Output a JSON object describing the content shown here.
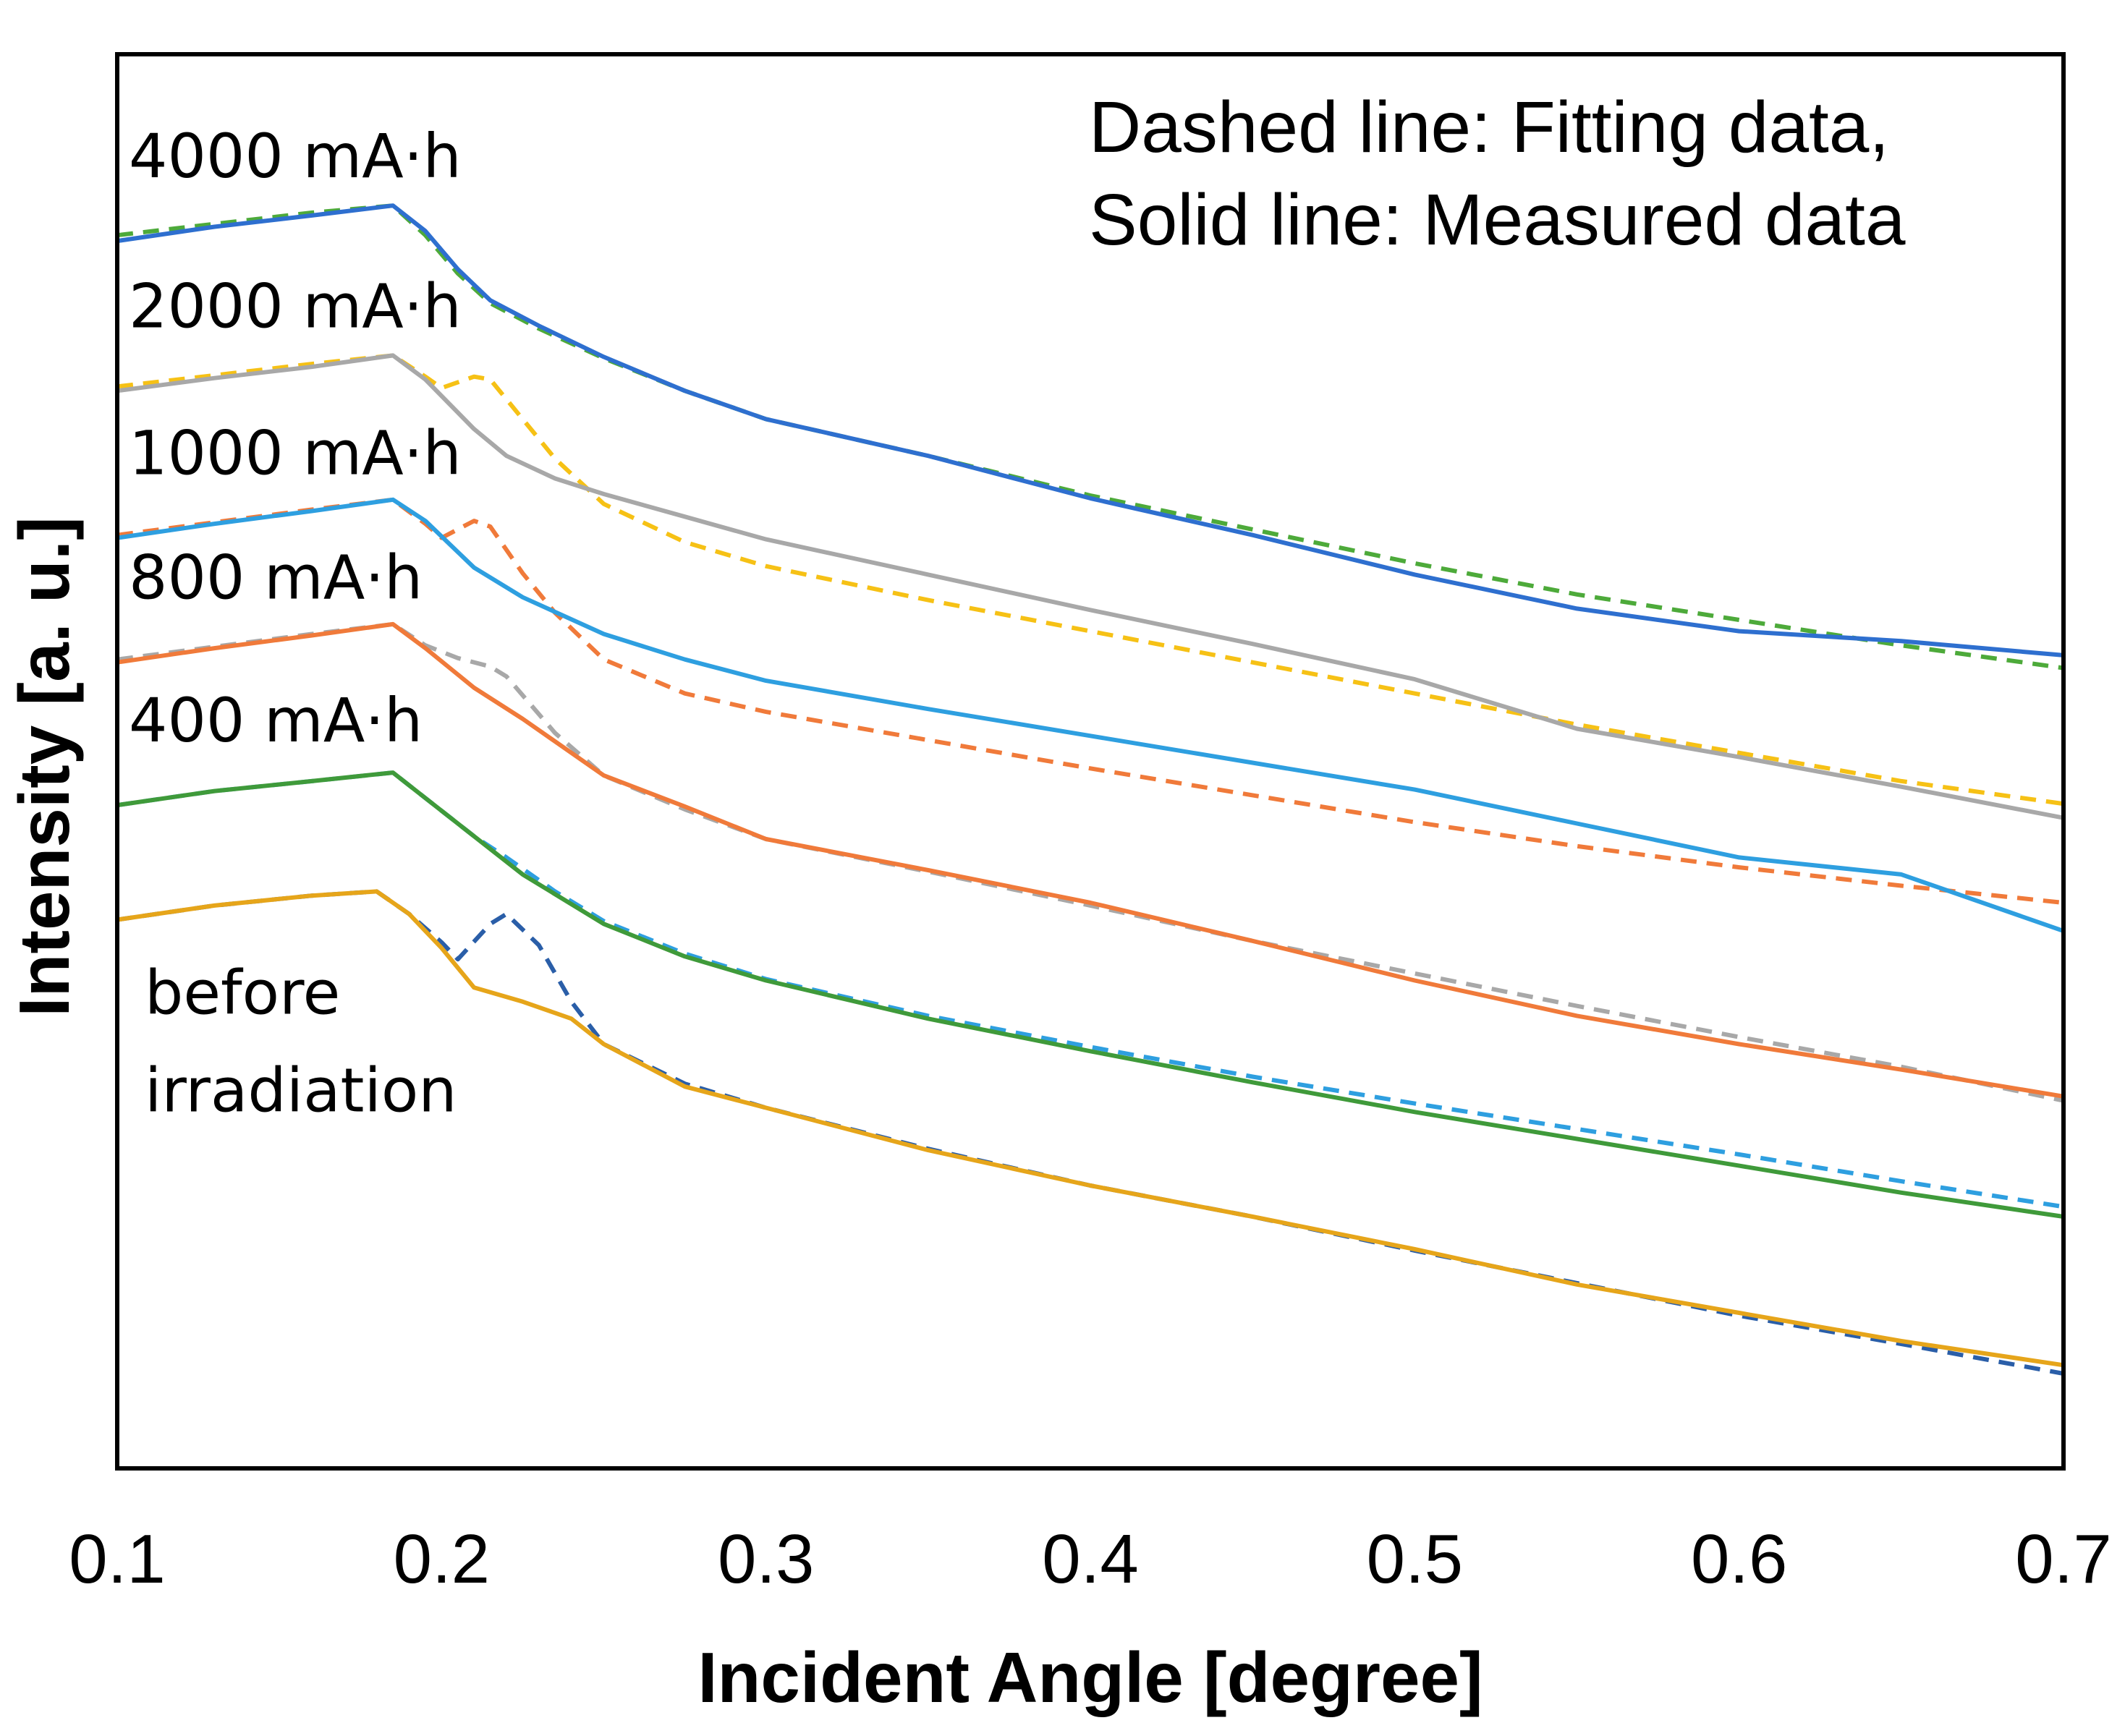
{
  "chart_data": {
    "type": "line",
    "title": "",
    "xlabel": "Incident Angle [degree]",
    "ylabel": "Intensity [a. u.]",
    "xlim": [
      0.1,
      0.7
    ],
    "ylim": [
      0,
      1
    ],
    "x_ticks": [
      "0.1",
      "0.2",
      "0.3",
      "0.4",
      "0.5",
      "0.6",
      "0.7"
    ],
    "grid": false,
    "annotation": {
      "line1": "Dashed line: Fitting data,",
      "line2": "Solid line: Measured data"
    },
    "series": [
      {
        "name": "4000 mA·h",
        "label_lines": [
          "4000 mA·h"
        ],
        "measured_color": "#2e6fcf",
        "fit_color": "#4daa3a",
        "measured": [
          [
            0.1,
            0.868
          ],
          [
            0.13,
            0.878
          ],
          [
            0.16,
            0.886
          ],
          [
            0.185,
            0.893
          ],
          [
            0.195,
            0.875
          ],
          [
            0.205,
            0.848
          ],
          [
            0.215,
            0.826
          ],
          [
            0.23,
            0.808
          ],
          [
            0.25,
            0.786
          ],
          [
            0.275,
            0.762
          ],
          [
            0.3,
            0.742
          ],
          [
            0.35,
            0.716
          ],
          [
            0.4,
            0.686
          ],
          [
            0.45,
            0.66
          ],
          [
            0.5,
            0.632
          ],
          [
            0.55,
            0.608
          ],
          [
            0.6,
            0.592
          ],
          [
            0.65,
            0.585
          ],
          [
            0.7,
            0.575
          ]
        ],
        "fit": [
          [
            0.1,
            0.872
          ],
          [
            0.13,
            0.88
          ],
          [
            0.16,
            0.888
          ],
          [
            0.185,
            0.893
          ],
          [
            0.195,
            0.872
          ],
          [
            0.205,
            0.845
          ],
          [
            0.215,
            0.824
          ],
          [
            0.23,
            0.806
          ],
          [
            0.25,
            0.785
          ],
          [
            0.275,
            0.762
          ],
          [
            0.3,
            0.742
          ],
          [
            0.35,
            0.716
          ],
          [
            0.4,
            0.688
          ],
          [
            0.45,
            0.664
          ],
          [
            0.5,
            0.64
          ],
          [
            0.55,
            0.618
          ],
          [
            0.6,
            0.6
          ],
          [
            0.65,
            0.582
          ],
          [
            0.7,
            0.566
          ]
        ]
      },
      {
        "name": "2000 mA·h",
        "label_lines": [
          "2000 mA·h"
        ],
        "measured_color": "#a8a8a8",
        "fit_color": "#f6c115",
        "measured": [
          [
            0.1,
            0.762
          ],
          [
            0.13,
            0.771
          ],
          [
            0.16,
            0.779
          ],
          [
            0.185,
            0.787
          ],
          [
            0.195,
            0.77
          ],
          [
            0.21,
            0.735
          ],
          [
            0.22,
            0.716
          ],
          [
            0.235,
            0.7
          ],
          [
            0.25,
            0.689
          ],
          [
            0.275,
            0.673
          ],
          [
            0.3,
            0.657
          ],
          [
            0.35,
            0.632
          ],
          [
            0.4,
            0.607
          ],
          [
            0.45,
            0.583
          ],
          [
            0.5,
            0.558
          ],
          [
            0.55,
            0.523
          ],
          [
            0.6,
            0.503
          ],
          [
            0.65,
            0.482
          ],
          [
            0.7,
            0.46
          ]
        ],
        "fit": [
          [
            0.1,
            0.765
          ],
          [
            0.13,
            0.773
          ],
          [
            0.16,
            0.781
          ],
          [
            0.185,
            0.787
          ],
          [
            0.195,
            0.772
          ],
          [
            0.2,
            0.764
          ],
          [
            0.21,
            0.772
          ],
          [
            0.215,
            0.77
          ],
          [
            0.225,
            0.742
          ],
          [
            0.235,
            0.714
          ],
          [
            0.25,
            0.682
          ],
          [
            0.275,
            0.655
          ],
          [
            0.3,
            0.638
          ],
          [
            0.35,
            0.614
          ],
          [
            0.4,
            0.592
          ],
          [
            0.45,
            0.57
          ],
          [
            0.5,
            0.548
          ],
          [
            0.55,
            0.526
          ],
          [
            0.6,
            0.506
          ],
          [
            0.65,
            0.486
          ],
          [
            0.7,
            0.47
          ]
        ]
      },
      {
        "name": "1000 mA·h",
        "label_lines": [
          "1000 mA·h"
        ],
        "measured_color": "#2e9fe0",
        "fit_color": "#f07a3a",
        "measured": [
          [
            0.1,
            0.658
          ],
          [
            0.13,
            0.668
          ],
          [
            0.16,
            0.677
          ],
          [
            0.185,
            0.685
          ],
          [
            0.195,
            0.67
          ],
          [
            0.21,
            0.637
          ],
          [
            0.225,
            0.616
          ],
          [
            0.25,
            0.59
          ],
          [
            0.275,
            0.572
          ],
          [
            0.3,
            0.557
          ],
          [
            0.35,
            0.537
          ],
          [
            0.4,
            0.518
          ],
          [
            0.45,
            0.499
          ],
          [
            0.5,
            0.48
          ],
          [
            0.55,
            0.456
          ],
          [
            0.6,
            0.432
          ],
          [
            0.65,
            0.42
          ],
          [
            0.7,
            0.38
          ]
        ],
        "fit": [
          [
            0.1,
            0.66
          ],
          [
            0.13,
            0.669
          ],
          [
            0.16,
            0.678
          ],
          [
            0.185,
            0.685
          ],
          [
            0.195,
            0.668
          ],
          [
            0.2,
            0.658
          ],
          [
            0.21,
            0.67
          ],
          [
            0.215,
            0.666
          ],
          [
            0.225,
            0.633
          ],
          [
            0.235,
            0.605
          ],
          [
            0.25,
            0.572
          ],
          [
            0.275,
            0.548
          ],
          [
            0.3,
            0.535
          ],
          [
            0.35,
            0.515
          ],
          [
            0.4,
            0.495
          ],
          [
            0.45,
            0.476
          ],
          [
            0.5,
            0.457
          ],
          [
            0.55,
            0.44
          ],
          [
            0.6,
            0.425
          ],
          [
            0.65,
            0.412
          ],
          [
            0.7,
            0.4
          ]
        ]
      },
      {
        "name": "800 mA·h",
        "label_lines": [
          "800 mA·h"
        ],
        "measured_color": "#f07a3a",
        "fit_color": "#a8a8a8",
        "measured": [
          [
            0.1,
            0.57
          ],
          [
            0.13,
            0.58
          ],
          [
            0.16,
            0.589
          ],
          [
            0.185,
            0.597
          ],
          [
            0.195,
            0.58
          ],
          [
            0.21,
            0.552
          ],
          [
            0.225,
            0.53
          ],
          [
            0.25,
            0.49
          ],
          [
            0.275,
            0.468
          ],
          [
            0.3,
            0.445
          ],
          [
            0.35,
            0.423
          ],
          [
            0.4,
            0.4
          ],
          [
            0.45,
            0.373
          ],
          [
            0.5,
            0.345
          ],
          [
            0.55,
            0.32
          ],
          [
            0.6,
            0.3
          ],
          [
            0.65,
            0.282
          ],
          [
            0.7,
            0.263
          ]
        ],
        "fit": [
          [
            0.1,
            0.572
          ],
          [
            0.13,
            0.581
          ],
          [
            0.16,
            0.59
          ],
          [
            0.185,
            0.597
          ],
          [
            0.195,
            0.582
          ],
          [
            0.205,
            0.573
          ],
          [
            0.215,
            0.567
          ],
          [
            0.22,
            0.56
          ],
          [
            0.235,
            0.52
          ],
          [
            0.25,
            0.49
          ],
          [
            0.275,
            0.466
          ],
          [
            0.3,
            0.445
          ],
          [
            0.35,
            0.422
          ],
          [
            0.4,
            0.398
          ],
          [
            0.45,
            0.373
          ],
          [
            0.5,
            0.35
          ],
          [
            0.55,
            0.327
          ],
          [
            0.6,
            0.305
          ],
          [
            0.65,
            0.284
          ],
          [
            0.7,
            0.26
          ]
        ]
      },
      {
        "name": "400 mA·h",
        "label_lines": [
          "400 mA·h"
        ],
        "measured_color": "#3f9a3a",
        "fit_color": "#2e9fe0",
        "measured": [
          [
            0.1,
            0.469
          ],
          [
            0.13,
            0.479
          ],
          [
            0.16,
            0.486
          ],
          [
            0.185,
            0.492
          ],
          [
            0.195,
            0.474
          ],
          [
            0.21,
            0.447
          ],
          [
            0.225,
            0.42
          ],
          [
            0.25,
            0.385
          ],
          [
            0.275,
            0.362
          ],
          [
            0.3,
            0.345
          ],
          [
            0.35,
            0.318
          ],
          [
            0.4,
            0.295
          ],
          [
            0.45,
            0.273
          ],
          [
            0.5,
            0.252
          ],
          [
            0.55,
            0.233
          ],
          [
            0.6,
            0.214
          ],
          [
            0.65,
            0.195
          ],
          [
            0.7,
            0.178
          ]
        ],
        "fit": [
          [
            0.1,
            0.469
          ],
          [
            0.13,
            0.479
          ],
          [
            0.16,
            0.486
          ],
          [
            0.185,
            0.492
          ],
          [
            0.195,
            0.474
          ],
          [
            0.21,
            0.447
          ],
          [
            0.22,
            0.432
          ],
          [
            0.235,
            0.408
          ],
          [
            0.25,
            0.387
          ],
          [
            0.275,
            0.364
          ],
          [
            0.3,
            0.346
          ],
          [
            0.35,
            0.32
          ],
          [
            0.4,
            0.298
          ],
          [
            0.45,
            0.277
          ],
          [
            0.5,
            0.258
          ],
          [
            0.55,
            0.24
          ],
          [
            0.6,
            0.222
          ],
          [
            0.65,
            0.203
          ],
          [
            0.7,
            0.185
          ]
        ]
      },
      {
        "name": "before irradiation",
        "label_lines": [
          "before",
          "irradiation"
        ],
        "measured_color": "#e6a51a",
        "fit_color": "#2a5ea8",
        "measured": [
          [
            0.1,
            0.388
          ],
          [
            0.13,
            0.398
          ],
          [
            0.16,
            0.405
          ],
          [
            0.18,
            0.408
          ],
          [
            0.19,
            0.392
          ],
          [
            0.2,
            0.368
          ],
          [
            0.21,
            0.34
          ],
          [
            0.225,
            0.33
          ],
          [
            0.24,
            0.318
          ],
          [
            0.25,
            0.3
          ],
          [
            0.275,
            0.27
          ],
          [
            0.3,
            0.255
          ],
          [
            0.35,
            0.225
          ],
          [
            0.4,
            0.2
          ],
          [
            0.45,
            0.178
          ],
          [
            0.5,
            0.155
          ],
          [
            0.55,
            0.13
          ],
          [
            0.6,
            0.11
          ],
          [
            0.65,
            0.09
          ],
          [
            0.7,
            0.073
          ]
        ],
        "fit": [
          [
            0.1,
            0.388
          ],
          [
            0.13,
            0.398
          ],
          [
            0.16,
            0.405
          ],
          [
            0.18,
            0.408
          ],
          [
            0.19,
            0.392
          ],
          [
            0.2,
            0.372
          ],
          [
            0.205,
            0.36
          ],
          [
            0.215,
            0.385
          ],
          [
            0.22,
            0.392
          ],
          [
            0.23,
            0.37
          ],
          [
            0.24,
            0.33
          ],
          [
            0.25,
            0.3
          ],
          [
            0.275,
            0.272
          ],
          [
            0.3,
            0.255
          ],
          [
            0.35,
            0.226
          ],
          [
            0.4,
            0.2
          ],
          [
            0.45,
            0.178
          ],
          [
            0.5,
            0.154
          ],
          [
            0.55,
            0.131
          ],
          [
            0.6,
            0.108
          ],
          [
            0.65,
            0.088
          ],
          [
            0.7,
            0.067
          ]
        ]
      }
    ]
  }
}
